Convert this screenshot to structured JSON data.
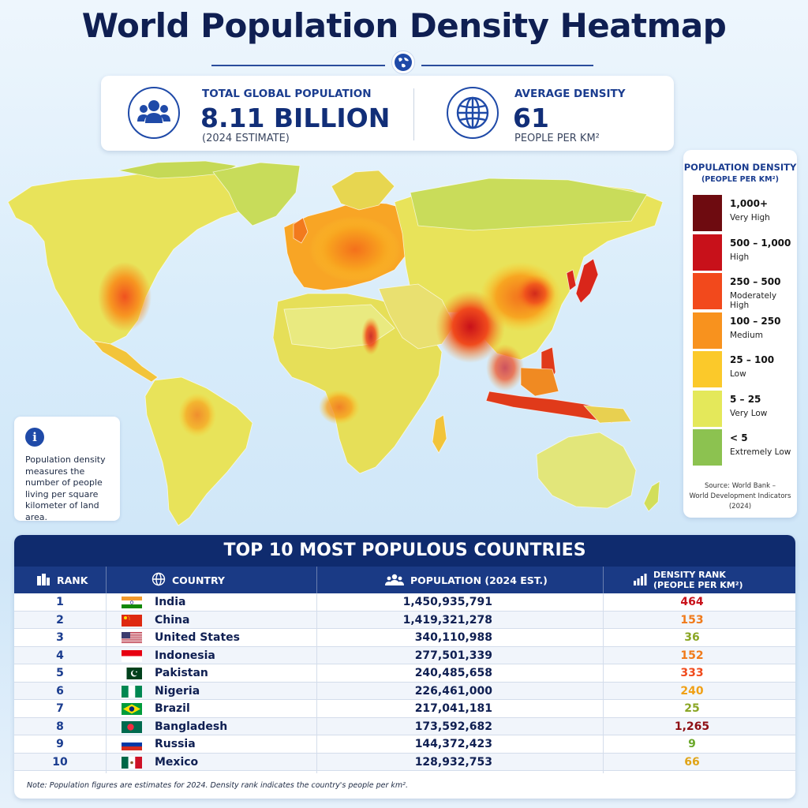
{
  "title": "World Population Density Heatmap",
  "stats": {
    "population": {
      "icon": "people-icon",
      "label": "TOTAL GLOBAL POPULATION",
      "value": "8.11 BILLION",
      "sub": "(2024 ESTIMATE)"
    },
    "density": {
      "icon": "globe-icon",
      "label": "AVERAGE DENSITY",
      "value": "61",
      "sub": "PEOPLE PER KM²"
    }
  },
  "info": {
    "icon": "info-icon",
    "text": "Population density measures the number of people living per square kilometer of land area."
  },
  "legend": {
    "title": "POPULATION DENSITY",
    "unit": "(PEOPLE PER KM²)",
    "items": [
      {
        "range": "1,000+",
        "desc": "Very High",
        "color": "#6e0b10"
      },
      {
        "range": "500 – 1,000",
        "desc": "High",
        "color": "#c8111a"
      },
      {
        "range": "250 – 500",
        "desc": "Moderately High",
        "color": "#f2491c"
      },
      {
        "range": "100 – 250",
        "desc": "Medium",
        "color": "#f8921e"
      },
      {
        "range": "25 – 100",
        "desc": "Low",
        "color": "#fbc92a"
      },
      {
        "range": "5 – 25",
        "desc": "Very Low",
        "color": "#e4e85a"
      },
      {
        "range": "< 5",
        "desc": "Extremely Low",
        "color": "#8cc250"
      }
    ],
    "source_line1": "Source: World Bank –",
    "source_line2": "World Development Indicators (2024)"
  },
  "table": {
    "title": "TOP 10 MOST POPULOUS COUNTRIES",
    "headers": {
      "rank": "RANK",
      "country": "COUNTRY",
      "population": "POPULATION (2024 EST.)",
      "density_1": "DENSITY RANK",
      "density_2": "(PEOPLE PER KM²)"
    },
    "rows": [
      {
        "rank": "1",
        "country": "India",
        "flag": "india",
        "population": "1,450,935,791",
        "density": "464",
        "density_color": "#c8111a"
      },
      {
        "rank": "2",
        "country": "China",
        "flag": "china",
        "population": "1,419,321,278",
        "density": "153",
        "density_color": "#f07a1a"
      },
      {
        "rank": "3",
        "country": "United States",
        "flag": "usa",
        "population": "340,110,988",
        "density": "36",
        "density_color": "#8aa624"
      },
      {
        "rank": "4",
        "country": "Indonesia",
        "flag": "indonesia",
        "population": "277,501,339",
        "density": "152",
        "density_color": "#f07a1a"
      },
      {
        "rank": "5",
        "country": "Pakistan",
        "flag": "pakistan",
        "population": "240,485,658",
        "density": "333",
        "density_color": "#f04a1c"
      },
      {
        "rank": "6",
        "country": "Nigeria",
        "flag": "nigeria",
        "population": "226,461,000",
        "density": "240",
        "density_color": "#f0a015"
      },
      {
        "rank": "7",
        "country": "Brazil",
        "flag": "brazil",
        "population": "217,041,181",
        "density": "25",
        "density_color": "#8aa624"
      },
      {
        "rank": "8",
        "country": "Bangladesh",
        "flag": "bangladesh",
        "population": "173,592,682",
        "density": "1,265",
        "density_color": "#8e0f14"
      },
      {
        "rank": "9",
        "country": "Russia",
        "flag": "russia",
        "population": "144,372,423",
        "density": "9",
        "density_color": "#6aa82a"
      },
      {
        "rank": "10",
        "country": "Mexico",
        "flag": "mexico",
        "population": "128,932,753",
        "density": "66",
        "density_color": "#e0a418"
      }
    ],
    "note": "Note: Population figures are estimates for 2024. Density rank indicates the country's people per km²."
  }
}
